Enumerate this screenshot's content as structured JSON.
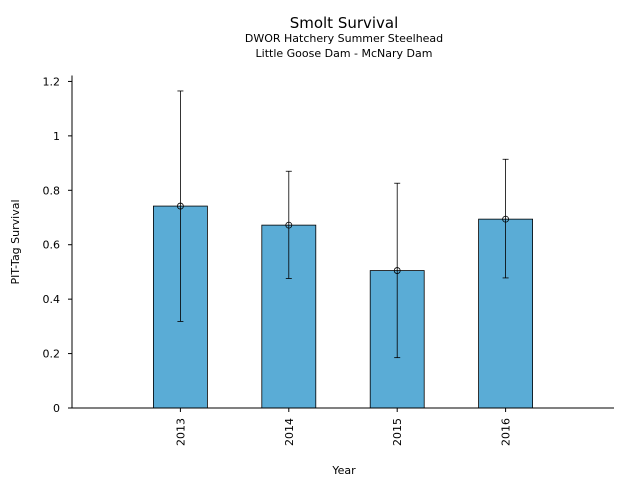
{
  "chart_data": {
    "type": "bar",
    "title": "Smolt Survival",
    "subtitle_lines": [
      "DWOR Hatchery Summer Steelhead",
      "Little Goose Dam - McNary Dam"
    ],
    "xlabel": "Year",
    "ylabel": "PIT-Tag Survival",
    "categories": [
      "2013",
      "2014",
      "2015",
      "2016"
    ],
    "values": [
      0.742,
      0.672,
      0.505,
      0.694
    ],
    "error_lower": [
      0.318,
      0.476,
      0.185,
      0.478
    ],
    "error_upper": [
      1.165,
      0.87,
      0.826,
      0.914
    ],
    "ylim": [
      0,
      1.22
    ],
    "yticks": [
      0,
      0.2,
      0.4,
      0.6,
      0.8,
      1,
      1.2
    ],
    "ytick_labels": [
      "0",
      "0.2",
      "0.4",
      "0.6",
      "0.8",
      "1",
      "1.2"
    ],
    "bar_color": "#5aacd6",
    "grid": false,
    "legend": "none"
  }
}
